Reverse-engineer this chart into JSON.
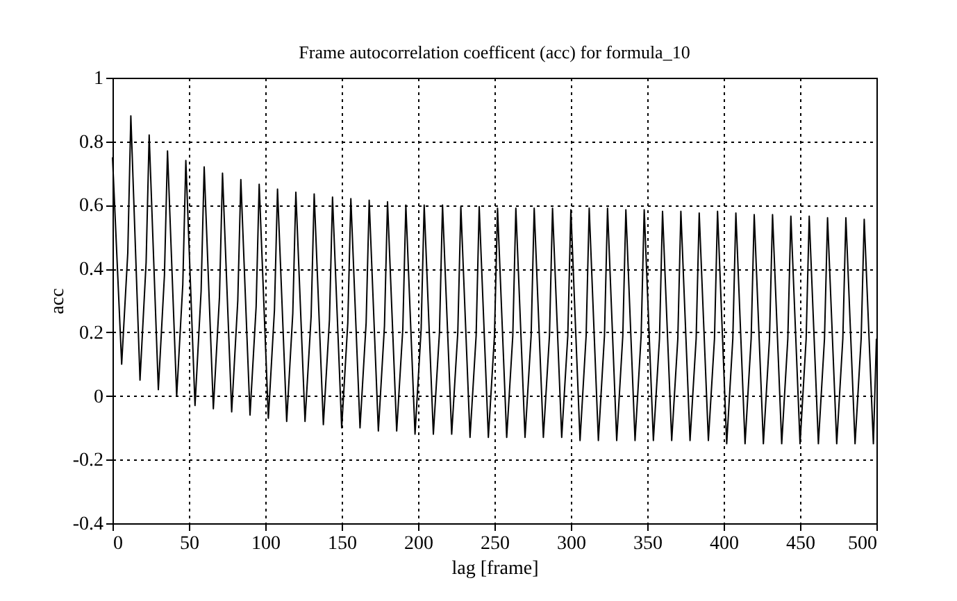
{
  "chart_data": {
    "type": "line",
    "title": "Frame autocorrelation coefficent (acc) for formula_10",
    "xlabel": "lag [frame]",
    "ylabel": "acc",
    "xlim": [
      0,
      500
    ],
    "xticks": [
      0,
      50,
      100,
      150,
      200,
      250,
      300,
      350,
      400,
      450,
      500
    ],
    "ylim": [
      -0.4,
      1
    ],
    "yticks": [
      -0.4,
      -0.2,
      0,
      0.2,
      0.4,
      0.6,
      0.8,
      1
    ],
    "grid": true,
    "marker": "none",
    "line_style": "solid",
    "series": [
      {
        "color": "#000000",
        "x": [
          0,
          6,
          10,
          12,
          18,
          22,
          24,
          30,
          34,
          36,
          42,
          46,
          48,
          54,
          58,
          60,
          66,
          70,
          72,
          78,
          82,
          84,
          90,
          94,
          96,
          102,
          106,
          108,
          114,
          118,
          120,
          126,
          130,
          132,
          138,
          142,
          144,
          150,
          154,
          156,
          162,
          166,
          168,
          174,
          178,
          180,
          186,
          190,
          192,
          198,
          202,
          204,
          210,
          214,
          216,
          222,
          226,
          228,
          234,
          238,
          240,
          246,
          250,
          252,
          258,
          262,
          264,
          270,
          274,
          276,
          282,
          286,
          288,
          294,
          298,
          300,
          306,
          310,
          312,
          318,
          322,
          324,
          330,
          334,
          336,
          342,
          346,
          348,
          354,
          358,
          360,
          366,
          370,
          372,
          378,
          382,
          384,
          390,
          394,
          396,
          402,
          406,
          408,
          414,
          418,
          420,
          426,
          430,
          432,
          438,
          442,
          444,
          450,
          454,
          456,
          462,
          466,
          468,
          474,
          478,
          480,
          486,
          490,
          492,
          498,
          500
        ],
        "values": [
          0.75,
          0.1,
          0.45,
          0.88,
          0.05,
          0.42,
          0.82,
          0.02,
          0.38,
          0.77,
          0,
          0.35,
          0.74,
          -0.03,
          0.33,
          0.72,
          -0.04,
          0.31,
          0.7,
          -0.05,
          0.3,
          0.68,
          -0.06,
          0.28,
          0.665,
          -0.07,
          0.27,
          0.65,
          -0.08,
          0.26,
          0.64,
          -0.08,
          0.25,
          0.635,
          -0.09,
          0.24,
          0.625,
          -0.1,
          0.23,
          0.62,
          -0.1,
          0.23,
          0.615,
          -0.11,
          0.22,
          0.61,
          -0.11,
          0.21,
          0.6,
          -0.12,
          0.21,
          0.6,
          -0.12,
          0.2,
          0.6,
          -0.12,
          0.2,
          0.595,
          -0.13,
          0.19,
          0.595,
          -0.13,
          0.19,
          0.59,
          -0.13,
          0.19,
          0.59,
          -0.13,
          0.19,
          0.59,
          -0.13,
          0.19,
          0.59,
          -0.13,
          0.19,
          0.585,
          -0.14,
          0.19,
          0.59,
          -0.14,
          0.19,
          0.59,
          -0.14,
          0.19,
          0.585,
          -0.14,
          0.19,
          0.585,
          -0.14,
          0.18,
          0.58,
          -0.14,
          0.18,
          0.58,
          -0.14,
          0.18,
          0.575,
          -0.14,
          0.18,
          0.58,
          -0.15,
          0.18,
          0.575,
          -0.15,
          0.18,
          0.57,
          -0.15,
          0.18,
          0.57,
          -0.15,
          0.18,
          0.565,
          -0.15,
          0.18,
          0.565,
          -0.15,
          0.18,
          0.56,
          -0.15,
          0.18,
          0.56,
          -0.15,
          0.18,
          0.555,
          -0.15,
          0.18
        ]
      }
    ]
  }
}
